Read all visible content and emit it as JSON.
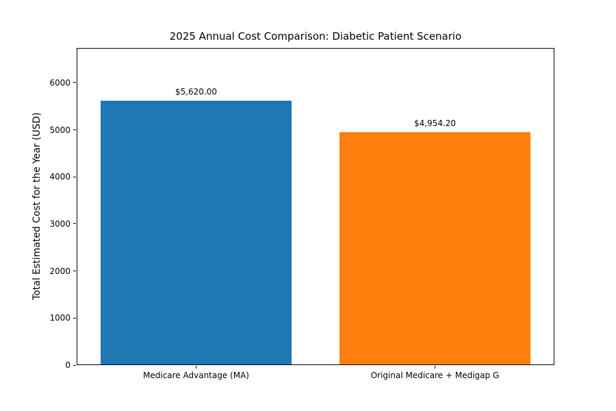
{
  "chart_data": {
    "type": "bar",
    "title": "2025 Annual Cost Comparison: Diabetic Patient Scenario",
    "categories": [
      "Medicare Advantage (MA)",
      "Original Medicare + Medigap G"
    ],
    "values": [
      5620.0,
      4954.2
    ],
    "value_labels": [
      "$5,620.00",
      "$4,954.20"
    ],
    "bar_colors": [
      "#1f77b4",
      "#ff7f0e"
    ],
    "xlabel": "",
    "ylabel": "Total Estimated Cost for the Year (USD)",
    "ylim": [
      0,
      6740
    ],
    "yticks": [
      0,
      1000,
      2000,
      3000,
      4000,
      5000,
      6000
    ],
    "bar_width_fraction": 0.8,
    "grid": false,
    "legend": "none",
    "background_color": "#ffffff",
    "axes_edge_color": "#000000"
  }
}
